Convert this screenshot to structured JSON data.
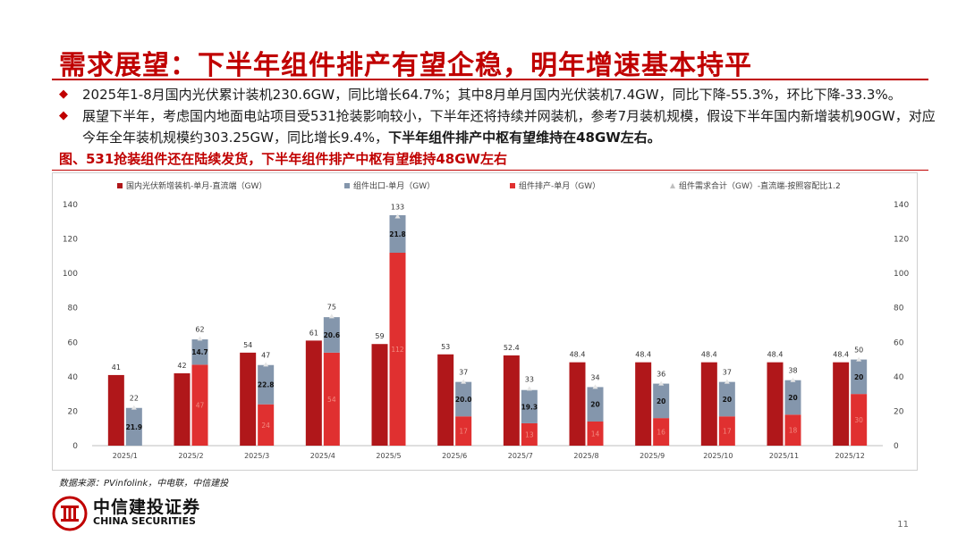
{
  "title": "需求展望：下半年组件排产有望企稳，明年增速基本持平",
  "bullets": [
    {
      "text": "2025年1-8月国内光伏累计装机230.6GW，同比增长64.7%；其中8月单月国内光伏装机7.4GW，同比下降-55.3%，环比下降-33.3%。",
      "bold": ""
    },
    {
      "text": "展望下半年，考虑国内地面电站项目受531抢装影响较小，下半年还将持续并网装机，参考7月装机规模，假设下半年国内新增装机90GW，对应今年全年装机规模约303.25GW，同比增长9.4%，",
      "bold": "下半年组件排产中枢有望维持在48GW左右。"
    }
  ],
  "figure_caption": "图、531抢装组件还在陆续发货，下半年组件排产中枢有望维持48GW左右",
  "source": "数据来源：PVinfolink，中电联，中信建投",
  "logo": {
    "cn": "中信建投证券",
    "en": "CHINA SECURITIES"
  },
  "page_number": "11",
  "colors": {
    "brand": "#c00000",
    "install": "#b0171a",
    "production": "#e03030",
    "export": "#8496ac",
    "demand": "#bfbfbf"
  },
  "chart_data": {
    "type": "bar",
    "categories": [
      "2025/1",
      "2025/2",
      "2025/3",
      "2025/4",
      "2025/5",
      "2025/6",
      "2025/7",
      "2025/8",
      "2025/9",
      "2025/10",
      "2025/11",
      "2025/12"
    ],
    "ylim": [
      0,
      140
    ],
    "yticks": [
      0,
      20,
      40,
      60,
      80,
      100,
      120,
      140
    ],
    "legend_position": "top",
    "series": [
      {
        "name": "国内光伏新增装机-单月-直流端（GW）",
        "values": [
          41,
          42,
          54,
          61,
          59,
          53,
          52.4,
          48.4,
          48.4,
          48.4,
          48.4,
          48.4
        ],
        "labels": [
          "41",
          "42",
          "54",
          "61",
          "59",
          "53",
          "52.4",
          "48.4",
          "48.4",
          "48.4",
          "48.4",
          "48.4"
        ]
      },
      {
        "name": "组件出口-单月（GW）",
        "values": [
          21.9,
          14.7,
          22.8,
          20.6,
          21.8,
          20.0,
          19.3,
          20,
          20,
          20,
          20,
          20
        ],
        "labels": [
          "21.9",
          "14.7",
          "22.8",
          "20.6",
          "21.8",
          "20.0",
          "19.3",
          "20",
          "20",
          "20",
          "20",
          "20"
        ]
      },
      {
        "name": "组件排产-单月（GW）",
        "values": [
          0,
          47,
          24,
          54,
          112,
          17,
          13,
          14,
          16,
          17,
          18,
          30
        ],
        "labels": [
          "",
          "47",
          "24",
          "54",
          "112",
          "17",
          "13",
          "14",
          "16",
          "17",
          "18",
          "30"
        ]
      },
      {
        "name": "组件需求合计（GW）-直流端-按照容配比1.2",
        "values": [
          22,
          62,
          47,
          75,
          133,
          37,
          33,
          34,
          36,
          37,
          38,
          50
        ],
        "labels": [
          "22",
          "62",
          "47",
          "75",
          "133",
          "37",
          "33",
          "34",
          "36",
          "37",
          "38",
          "50"
        ]
      }
    ]
  }
}
